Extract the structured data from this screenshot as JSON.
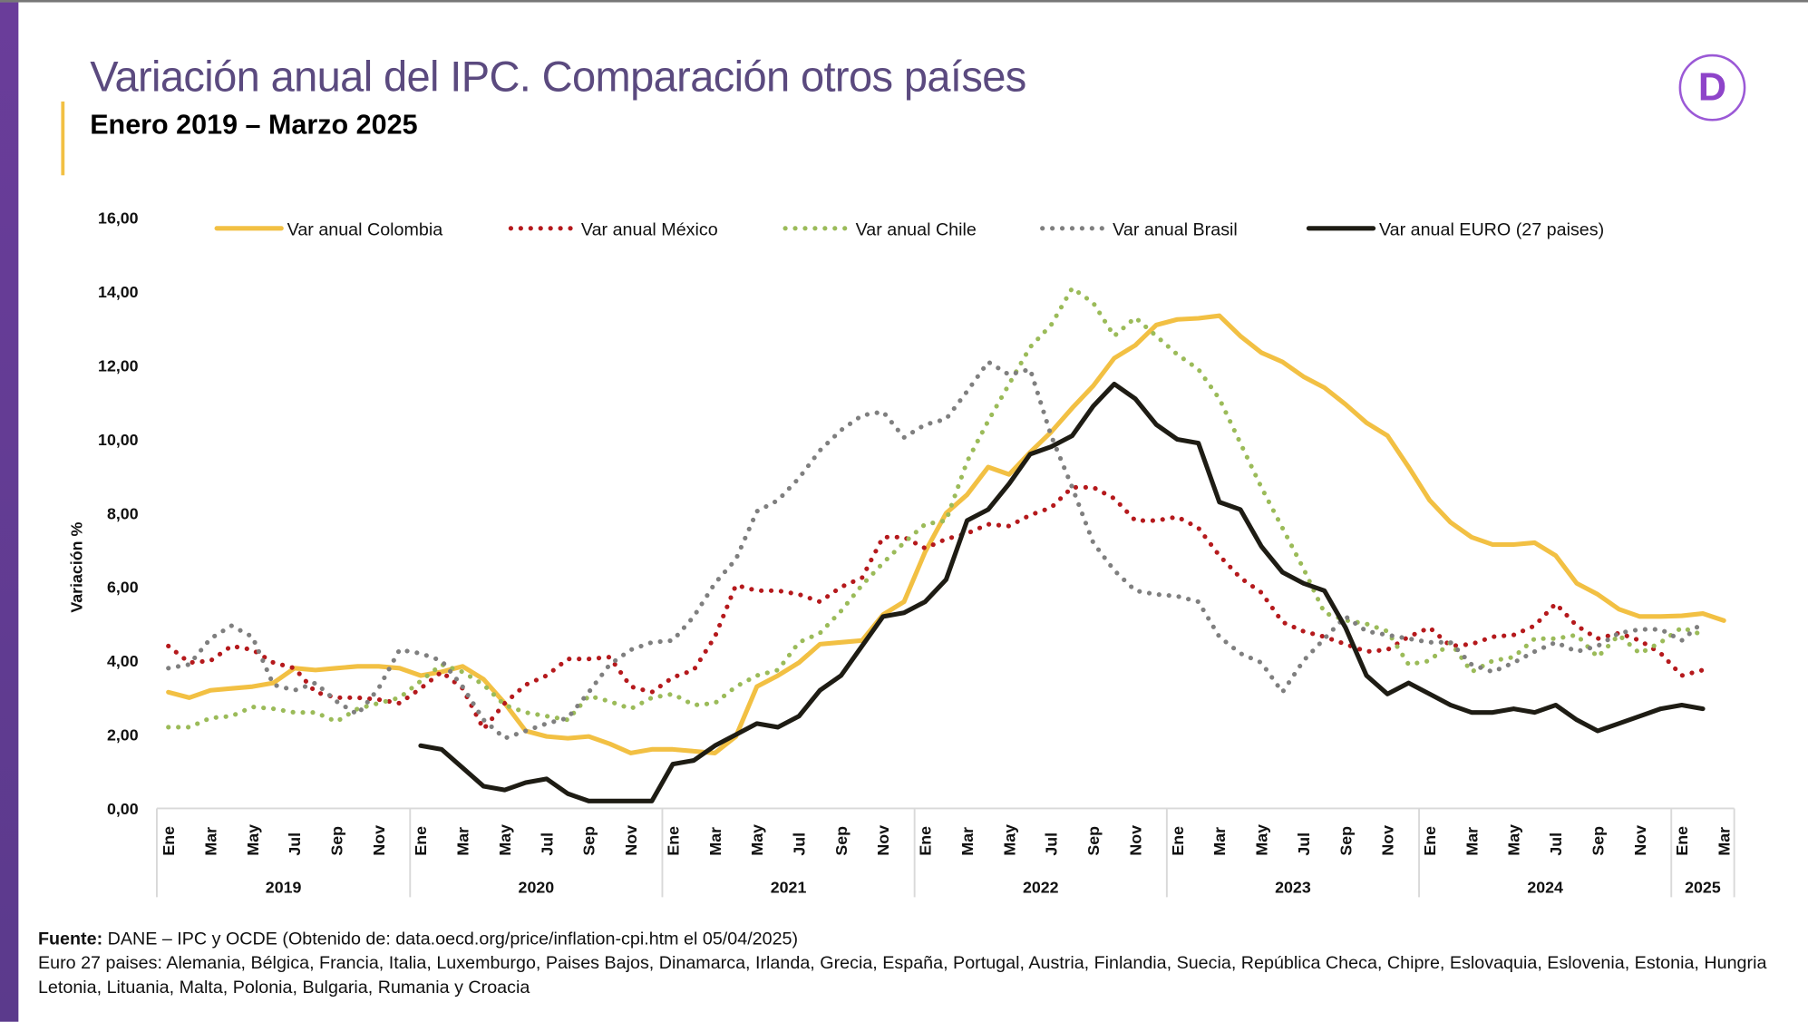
{
  "header": {
    "title": "Variación anual del IPC. Comparación otros países",
    "subtitle": "Enero 2019 – Marzo 2025",
    "logo_letter": "D"
  },
  "footer": {
    "source_label": "Fuente:",
    "source_text": " DANE – IPC y OCDE (Obtenido de: data.oecd.org/price/inflation-cpi.htm el 05/04/2025)",
    "note": "Euro 27 paises: Alemania, Bélgica, Francia, Italia, Luxemburgo, Paises Bajos, Dinamarca, Irlanda, Grecia, España, Portugal, Austria, Finlandia, Suecia, República Checa, Chipre, Eslovaquia, Eslovenia, Estonia, Hungria Letonia, Lituania, Malta, Polonia, Bulgaria, Rumania y Croacia"
  },
  "chart_data": {
    "type": "line",
    "title": "Variación anual del IPC. Comparación otros países",
    "ylabel": "Variación %",
    "xlabel": "",
    "ylim": [
      0,
      16
    ],
    "yticks": [
      "0,00",
      "2,00",
      "4,00",
      "6,00",
      "8,00",
      "10,00",
      "12,00",
      "14,00",
      "16,00"
    ],
    "x_start": "2019-01",
    "x_end": "2025-03",
    "month_labels": [
      "Ene",
      "Mar",
      "May",
      "Jul",
      "Sep",
      "Nov"
    ],
    "years": [
      "2019",
      "2020",
      "2021",
      "2022",
      "2023",
      "2024",
      "2025"
    ],
    "legend_position": "top",
    "series": [
      {
        "name": "Var anual Colombia",
        "color": "#f2c043",
        "style": "solid",
        "values": [
          3.15,
          3.0,
          3.2,
          3.25,
          3.3,
          3.4,
          3.8,
          3.75,
          3.8,
          3.85,
          3.85,
          3.8,
          3.6,
          3.7,
          3.85,
          3.5,
          2.85,
          2.1,
          1.95,
          1.9,
          1.95,
          1.75,
          1.5,
          1.6,
          1.6,
          1.55,
          1.5,
          1.95,
          3.3,
          3.6,
          3.95,
          4.45,
          4.5,
          4.55,
          5.25,
          5.6,
          6.95,
          8.0,
          8.5,
          9.25,
          9.05,
          9.65,
          10.2,
          10.85,
          11.45,
          12.2,
          12.55,
          13.1,
          13.25,
          13.28,
          13.35,
          12.8,
          12.35,
          12.1,
          11.7,
          11.4,
          10.95,
          10.45,
          10.1,
          9.25,
          8.35,
          7.75,
          7.35,
          7.15,
          7.15,
          7.2,
          6.85,
          6.1,
          5.8,
          5.4,
          5.2,
          5.2,
          5.22,
          5.28,
          5.09
        ]
      },
      {
        "name": "Var anual México",
        "color": "#b5191c",
        "style": "dotted",
        "values": [
          4.4,
          3.95,
          4.0,
          4.4,
          4.3,
          3.95,
          3.8,
          3.15,
          3.0,
          3.0,
          2.95,
          2.85,
          3.25,
          3.7,
          3.25,
          2.15,
          2.85,
          3.35,
          3.6,
          4.05,
          4.05,
          4.1,
          3.3,
          3.15,
          3.55,
          3.75,
          4.65,
          6.05,
          5.9,
          5.9,
          5.8,
          5.6,
          6.0,
          6.25,
          7.35,
          7.35,
          7.05,
          7.3,
          7.45,
          7.7,
          7.65,
          7.95,
          8.15,
          8.7,
          8.7,
          8.4,
          7.8,
          7.8,
          7.9,
          7.6,
          6.85,
          6.25,
          5.85,
          5.05,
          4.8,
          4.65,
          4.45,
          4.25,
          4.3,
          4.65,
          4.9,
          4.4,
          4.45,
          4.65,
          4.7,
          4.95,
          5.55,
          4.95,
          4.6,
          4.75,
          4.55,
          4.2,
          3.6,
          3.75,
          null
        ]
      },
      {
        "name": "Var anual Chile",
        "color": "#9bbb59",
        "style": "dotted",
        "values": [
          2.2,
          2.2,
          2.45,
          2.5,
          2.75,
          2.7,
          2.6,
          2.6,
          2.35,
          2.7,
          2.85,
          3.0,
          3.45,
          3.9,
          3.7,
          3.35,
          2.8,
          2.6,
          2.5,
          2.4,
          3.05,
          2.9,
          2.7,
          3.0,
          3.1,
          2.8,
          2.85,
          3.3,
          3.6,
          3.75,
          4.5,
          4.75,
          5.35,
          6.05,
          6.65,
          7.2,
          7.7,
          7.8,
          9.4,
          10.5,
          11.5,
          12.5,
          13.1,
          14.1,
          13.7,
          12.8,
          13.3,
          12.8,
          12.3,
          11.9,
          11.1,
          9.9,
          8.7,
          7.6,
          6.5,
          5.3,
          5.1,
          5.0,
          4.8,
          3.9,
          4.0,
          4.5,
          3.7,
          4.0,
          4.1,
          4.6,
          4.6,
          4.7,
          4.1,
          4.7,
          4.2,
          4.5,
          4.9,
          4.7,
          null
        ]
      },
      {
        "name": "Var anual Brasil",
        "color": "#7f7f7f",
        "style": "dotted",
        "values": [
          3.8,
          3.9,
          4.6,
          4.95,
          4.65,
          3.35,
          3.2,
          3.4,
          2.9,
          2.55,
          3.25,
          4.3,
          4.2,
          4.0,
          3.3,
          2.4,
          1.9,
          2.1,
          2.3,
          2.45,
          3.15,
          3.9,
          4.3,
          4.5,
          4.55,
          5.2,
          6.1,
          6.75,
          8.05,
          8.35,
          8.95,
          9.7,
          10.25,
          10.65,
          10.75,
          10.05,
          10.4,
          10.55,
          11.3,
          12.1,
          11.75,
          11.9,
          10.1,
          8.7,
          7.2,
          6.45,
          5.9,
          5.8,
          5.75,
          5.6,
          4.65,
          4.2,
          3.95,
          3.15,
          4.0,
          4.6,
          5.2,
          4.8,
          4.7,
          4.6,
          4.5,
          4.5,
          3.9,
          3.7,
          3.95,
          4.25,
          4.5,
          4.25,
          4.4,
          4.75,
          4.85,
          4.85,
          4.55,
          5.05,
          null
        ]
      },
      {
        "name": "Var anual EURO (27 paises)",
        "color": "#1e1c14",
        "style": "solid",
        "values": [
          null,
          null,
          null,
          null,
          null,
          null,
          null,
          null,
          null,
          null,
          null,
          null,
          1.7,
          1.6,
          1.1,
          0.6,
          0.5,
          0.7,
          0.8,
          0.4,
          0.2,
          0.2,
          0.2,
          0.2,
          1.2,
          1.3,
          1.7,
          2.0,
          2.3,
          2.2,
          2.5,
          3.2,
          3.6,
          4.4,
          5.2,
          5.3,
          5.6,
          6.2,
          7.8,
          8.1,
          8.8,
          9.6,
          9.8,
          10.1,
          10.9,
          11.5,
          11.1,
          10.4,
          10.0,
          9.9,
          8.3,
          8.1,
          7.1,
          6.4,
          6.1,
          5.9,
          4.9,
          3.6,
          3.1,
          3.4,
          3.1,
          2.8,
          2.6,
          2.6,
          2.7,
          2.6,
          2.8,
          2.4,
          2.1,
          2.3,
          2.5,
          2.7,
          2.8,
          2.7,
          null
        ]
      }
    ]
  }
}
